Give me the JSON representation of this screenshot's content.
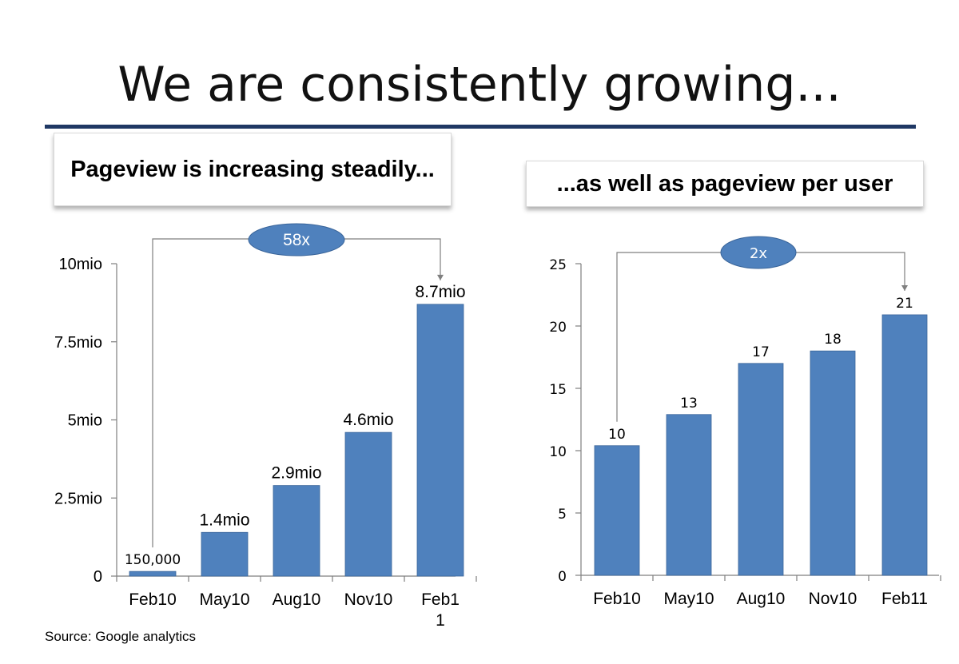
{
  "slide": {
    "title": "We are consistently growing...",
    "source": "Source: Google analytics",
    "accent_color": "#1f3864",
    "bar_color": "#4f81bd"
  },
  "chart_data": [
    {
      "type": "bar",
      "heading": "Pageview is increasing steadily...",
      "categories": [
        "Feb10",
        "May10",
        "Aug10",
        "Nov10",
        "Feb1\n1"
      ],
      "values": [
        150000,
        1400000,
        2900000,
        4600000,
        8700000
      ],
      "data_labels": [
        "150,000",
        "1.4mio",
        "2.9mio",
        "4.6mio",
        "8.7mio"
      ],
      "yticks": [
        0,
        2500000,
        5000000,
        7500000,
        10000000
      ],
      "ytick_labels": [
        "0",
        "2.5mio",
        "5mio",
        "7.5mio",
        "10mio"
      ],
      "ylim": [
        0,
        10000000
      ],
      "annotation": "58x",
      "grid": false,
      "legend": "none"
    },
    {
      "type": "bar",
      "heading": "...as well as pageview per user",
      "categories": [
        "Feb10",
        "May10",
        "Aug10",
        "Nov10",
        "Feb11"
      ],
      "values": [
        10.4,
        12.9,
        17,
        18,
        20.9
      ],
      "data_labels": [
        "10",
        "13",
        "17",
        "18",
        "21"
      ],
      "yticks": [
        0,
        5,
        10,
        15,
        20,
        25
      ],
      "ytick_labels": [
        "0",
        "5",
        "10",
        "15",
        "20",
        "25"
      ],
      "ylim": [
        0,
        25
      ],
      "annotation": "2x",
      "grid": false,
      "legend": "none"
    }
  ]
}
